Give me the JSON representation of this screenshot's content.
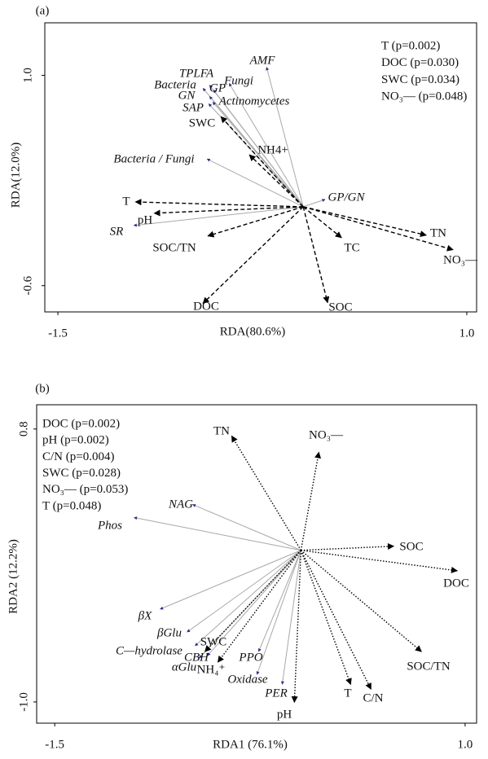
{
  "chart_data": [
    {
      "type": "biplot",
      "panel_label": "(a)",
      "xlabel": "RDA(80.6%)",
      "ylabel": "RDA(12.0%)",
      "xlim": [
        -1.58,
        1.06
      ],
      "ylim": [
        -0.8,
        1.4
      ],
      "xticks": [
        -1.5,
        {
          "value": 1,
          "label": "1.0"
        }
      ],
      "yticks": [
        -0.6,
        {
          "value": 1,
          "label": "1.0"
        }
      ],
      "annotations": [
        "T (p=0.002)",
        "DOC (p=0.030)",
        "SWC (p=0.034)",
        "NO₃— (p=0.048)"
      ],
      "explanatory_style": "dashed",
      "response_vectors": {
        "labels": [
          "AMF",
          "TPLFA",
          "Fungi",
          "Bacteria",
          "GP",
          "GN",
          "SAP",
          "Actinomycetes",
          "Bacteria / Fungi",
          "GP/GN",
          "SR"
        ],
        "x": [
          -0.224,
          -0.573,
          -0.453,
          -0.613,
          -0.548,
          -0.573,
          -0.578,
          -0.553,
          -0.588,
          0.134,
          -1.036
        ],
        "y": [
          1.062,
          0.926,
          0.939,
          0.902,
          0.889,
          0.84,
          0.784,
          0.797,
          0.364,
          0.056,
          -0.142
        ]
      },
      "explanatory_vectors": {
        "labels": [
          "SWC",
          "NH4+",
          "T",
          "pH",
          "SOC/TN",
          "DOC",
          "SOC",
          "TC",
          "TN",
          "NO₃—"
        ],
        "x": [
          -0.503,
          -0.329,
          -1.026,
          -0.911,
          -0.583,
          -0.613,
          0.149,
          0.234,
          0.752,
          0.916
        ],
        "y": [
          0.686,
          0.395,
          0.037,
          -0.049,
          -0.222,
          -0.735,
          -0.729,
          -0.235,
          -0.216,
          -0.327
        ]
      }
    },
    {
      "type": "biplot",
      "panel_label": "(b)",
      "xlabel": "RDA1 (76.1%)",
      "ylabel": "RDA2 (12.2%)",
      "xlim": [
        -1.61,
        1.07
      ],
      "ylim": [
        -1.14,
        0.96
      ],
      "xticks": [
        -1.5,
        {
          "value": 1,
          "label": "1.0"
        }
      ],
      "yticks": [
        {
          "value": -1,
          "label": "-1.0"
        },
        0.8
      ],
      "annotations": [
        "DOC (p=0.002)",
        "pH (p=0.002)",
        "C/N (p=0.004)",
        "SWC (p=0.028)",
        "NO₃— (p=0.053)",
        "T (p=0.048)"
      ],
      "explanatory_style": "dotted",
      "response_vectors": {
        "labels": [
          "NAG",
          "Phos",
          "βX",
          "βGlu",
          "C—hydrolase",
          "αGlu",
          "CBH",
          "PPO",
          "Oxidase",
          "PER"
        ],
        "x": [
          -0.66,
          -1.017,
          -0.858,
          -0.694,
          -0.645,
          -0.62,
          -0.57,
          -0.258,
          -0.268,
          -0.114
        ],
        "y": [
          0.302,
          0.216,
          -0.388,
          -0.539,
          -0.63,
          -0.711,
          -0.695,
          -0.668,
          -0.819,
          -0.884
        ]
      },
      "explanatory_vectors": {
        "labels": [
          "TN",
          "NO₃—",
          "SOC",
          "DOC",
          "SOC/TN",
          "C/N",
          "T",
          "pH",
          "SWC",
          "NH₄⁺"
        ],
        "x": [
          -0.422,
          0.109,
          0.565,
          0.952,
          0.734,
          0.427,
          0.303,
          -0.04,
          -0.585,
          -0.506
        ],
        "y": [
          0.754,
          0.647,
          0.027,
          -0.135,
          -0.668,
          -0.916,
          -0.884,
          -1.002,
          -0.668,
          -0.738
        ]
      }
    }
  ]
}
